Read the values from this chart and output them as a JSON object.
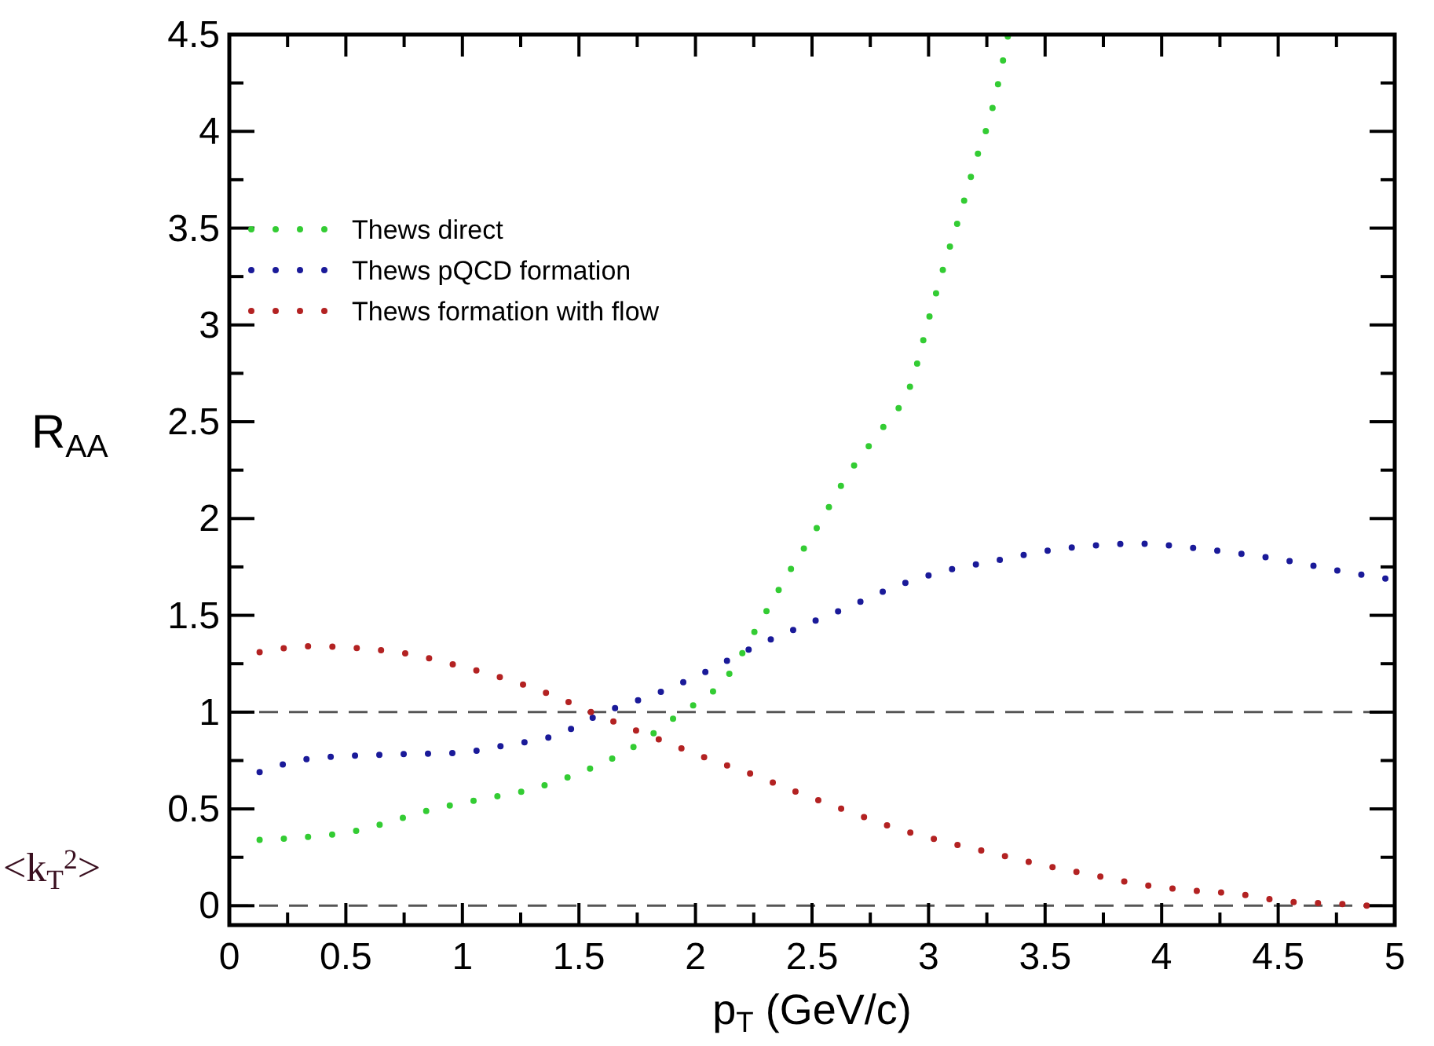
{
  "chart_data": {
    "type": "line",
    "xlabel": "p$_{T}$ (GeV/c)",
    "ylabel": "R$_{AA}$",
    "xlim": [
      0,
      5
    ],
    "ylim": [
      -0.1,
      4.5
    ],
    "xticks": [
      0,
      {
        "value": 0.25,
        "label": null
      },
      0.5,
      {
        "value": 0.75,
        "label": null
      },
      1,
      {
        "value": 1.25,
        "label": null
      },
      1.5,
      {
        "value": 1.75,
        "label": null
      },
      2,
      {
        "value": 2.25,
        "label": null
      },
      2.5,
      {
        "value": 2.75,
        "label": null
      },
      3,
      {
        "value": 3.25,
        "label": null
      },
      3.5,
      {
        "value": 3.75,
        "label": null
      },
      4,
      {
        "value": 4.25,
        "label": null
      },
      4.5,
      {
        "value": 4.75,
        "label": null
      },
      5
    ],
    "yticks": [
      0,
      {
        "value": 0.25,
        "label": null
      },
      0.5,
      {
        "value": 0.75,
        "label": null
      },
      1,
      {
        "value": 1.25,
        "label": null
      },
      1.5,
      {
        "value": 1.75,
        "label": null
      },
      2,
      {
        "value": 2.25,
        "label": null
      },
      2.5,
      {
        "value": 2.75,
        "label": null
      },
      3,
      {
        "value": 3.25,
        "label": null
      },
      3.5,
      {
        "value": 3.75,
        "label": null
      },
      4,
      {
        "value": 4.25,
        "label": null
      },
      4.5
    ],
    "grid": false,
    "legend": "top left",
    "line_style": "dotted",
    "series": [
      {
        "name": "Thews direct",
        "color": "#33cc33",
        "x": [
          0.13,
          0.56,
          0.65,
          0.88,
          1.08,
          1.29,
          1.51,
          1.72,
          1.92,
          2.14,
          2.27,
          2.4,
          2.53,
          2.65,
          2.81,
          2.92,
          3.01,
          3.07,
          3.14,
          3.2,
          3.27,
          3.34
        ],
        "values": [
          0.34,
          0.39,
          0.42,
          0.5,
          0.55,
          0.6,
          0.69,
          0.81,
          0.98,
          1.19,
          1.45,
          1.72,
          1.97,
          2.22,
          2.48,
          2.68,
          3.07,
          3.32,
          3.59,
          3.84,
          4.1,
          4.49
        ]
      },
      {
        "name": "Thews pQCD formation",
        "color": "#1a1a99",
        "x": [
          0.13,
          0.35,
          0.66,
          0.98,
          1.19,
          1.4,
          1.61,
          1.82,
          2.03,
          2.24,
          2.45,
          2.65,
          2.86,
          3.07,
          3.28,
          3.49,
          3.7,
          3.91,
          4.12,
          4.33,
          4.55,
          4.76,
          4.96
        ],
        "values": [
          0.69,
          0.76,
          0.78,
          0.79,
          0.83,
          0.88,
          1.0,
          1.09,
          1.2,
          1.33,
          1.44,
          1.54,
          1.65,
          1.73,
          1.78,
          1.83,
          1.86,
          1.87,
          1.85,
          1.82,
          1.78,
          1.73,
          1.69
        ]
      },
      {
        "name": "Thews formation with flow",
        "color": "#b32222",
        "x": [
          0.13,
          0.35,
          0.56,
          0.77,
          0.98,
          1.19,
          1.4,
          1.61,
          1.82,
          2.03,
          2.24,
          2.45,
          2.65,
          2.86,
          3.07,
          3.28,
          3.49,
          3.7,
          3.91,
          4.12,
          4.33,
          4.55,
          4.76,
          4.88
        ],
        "values": [
          1.31,
          1.34,
          1.33,
          1.3,
          1.24,
          1.17,
          1.08,
          0.97,
          0.87,
          0.77,
          0.68,
          0.58,
          0.49,
          0.4,
          0.33,
          0.27,
          0.21,
          0.16,
          0.11,
          0.08,
          0.06,
          0.02,
          0.01,
          0.0
        ]
      }
    ],
    "ref_lines": [
      {
        "axis": "y",
        "value": 1,
        "label": null,
        "color": "#555555",
        "line_style": "dashed"
      },
      {
        "axis": "y",
        "value": 0,
        "label": null,
        "color": "#555555",
        "line_style": "dashed"
      }
    ],
    "annotations": [
      "<k$_{T}$$^{2}$>"
    ]
  }
}
